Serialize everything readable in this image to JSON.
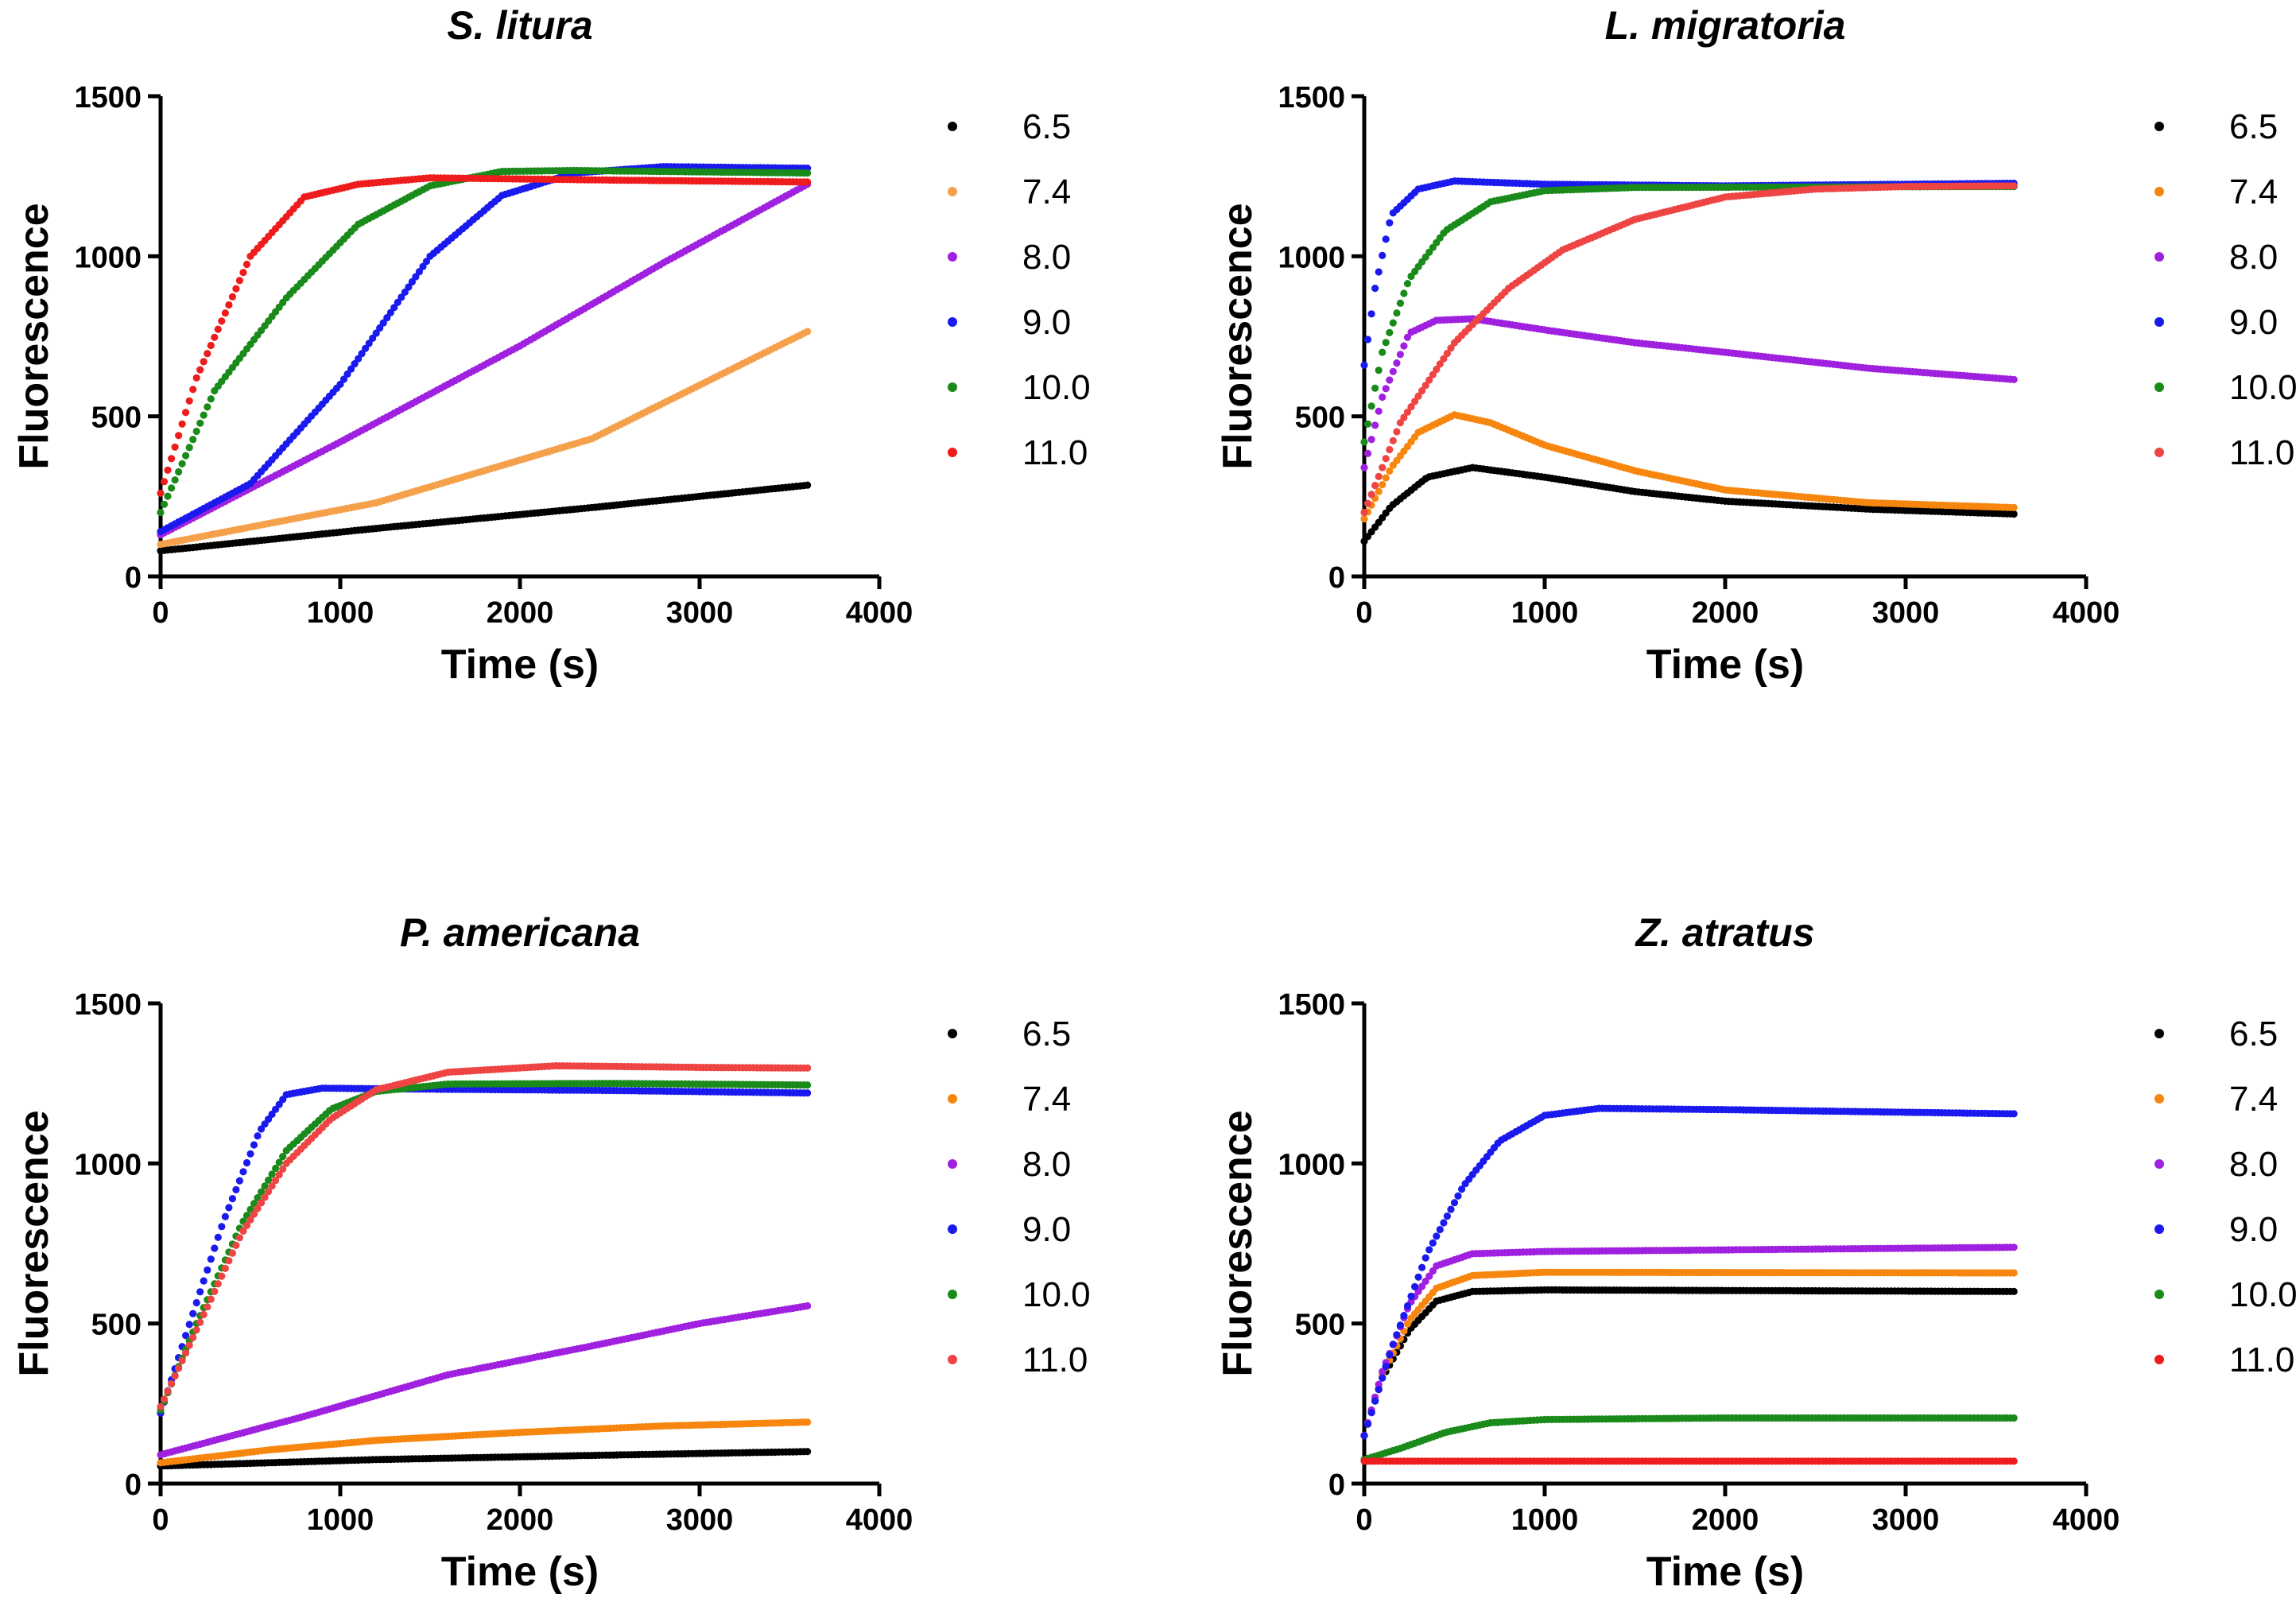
{
  "figure": {
    "layout": "2x2 grid of line/scatter charts"
  },
  "legend_entries": [
    "6.5",
    "7.4",
    "8.0",
    "9.0",
    "10.0",
    "11.0"
  ],
  "chart_data": [
    {
      "type": "scatter",
      "title": "S. litura",
      "xlabel": "Time (s)",
      "ylabel": "Fluorescence",
      "xlim": [
        0,
        4000
      ],
      "ylim": [
        0,
        1500
      ],
      "xticks": [
        "0",
        "1000",
        "2000",
        "3000",
        "4000"
      ],
      "yticks": [
        "0",
        "500",
        "1000",
        "1500"
      ],
      "x_end": 3600,
      "legend": "right",
      "series": [
        {
          "name": "6.5",
          "color": "#000000",
          "points": [
            [
              0,
              80
            ],
            [
              1200,
              150
            ],
            [
              2400,
              215
            ],
            [
              3600,
              285
            ]
          ]
        },
        {
          "name": "7.4",
          "color": "#f5a04a",
          "points": [
            [
              0,
              100
            ],
            [
              1200,
              230
            ],
            [
              2400,
              430
            ],
            [
              3600,
              765
            ]
          ]
        },
        {
          "name": "8.0",
          "color": "#a020e0",
          "points": [
            [
              0,
              130
            ],
            [
              1000,
              420
            ],
            [
              2000,
              720
            ],
            [
              2800,
              980
            ],
            [
              3600,
              1225
            ]
          ]
        },
        {
          "name": "9.0",
          "color": "#1a1aee",
          "points": [
            [
              0,
              140
            ],
            [
              500,
              290
            ],
            [
              1000,
              600
            ],
            [
              1500,
              1000
            ],
            [
              1900,
              1190
            ],
            [
              2300,
              1260
            ],
            [
              2800,
              1280
            ],
            [
              3600,
              1275
            ]
          ]
        },
        {
          "name": "10.0",
          "color": "#1a8a1a",
          "points": [
            [
              0,
              200
            ],
            [
              300,
              580
            ],
            [
              700,
              870
            ],
            [
              1100,
              1100
            ],
            [
              1500,
              1220
            ],
            [
              1900,
              1265
            ],
            [
              2300,
              1268
            ],
            [
              3600,
              1260
            ]
          ]
        },
        {
          "name": "11.0",
          "color": "#ee1c1c",
          "points": [
            [
              0,
              260
            ],
            [
              200,
              620
            ],
            [
              500,
              1000
            ],
            [
              800,
              1185
            ],
            [
              1100,
              1225
            ],
            [
              1500,
              1245
            ],
            [
              2500,
              1238
            ],
            [
              3600,
              1232
            ]
          ]
        }
      ]
    },
    {
      "type": "scatter",
      "title": "L. migratoria",
      "xlabel": "Time (s)",
      "ylabel": "Fluorescence",
      "xlim": [
        0,
        4000
      ],
      "ylim": [
        0,
        1500
      ],
      "xticks": [
        "0",
        "1000",
        "2000",
        "3000",
        "4000"
      ],
      "yticks": [
        "0",
        "500",
        "1000",
        "1500"
      ],
      "x_end": 3600,
      "legend": "right",
      "series": [
        {
          "name": "6.5",
          "color": "#000000",
          "points": [
            [
              0,
              110
            ],
            [
              150,
              220
            ],
            [
              350,
              310
            ],
            [
              600,
              340
            ],
            [
              1000,
              310
            ],
            [
              1500,
              265
            ],
            [
              2000,
              235
            ],
            [
              2800,
              210
            ],
            [
              3600,
              195
            ]
          ]
        },
        {
          "name": "7.4",
          "color": "#f7860f",
          "points": [
            [
              0,
              180
            ],
            [
              150,
              340
            ],
            [
              300,
              450
            ],
            [
              500,
              505
            ],
            [
              700,
              480
            ],
            [
              1000,
              410
            ],
            [
              1500,
              330
            ],
            [
              2000,
              270
            ],
            [
              2800,
              230
            ],
            [
              3600,
              215
            ]
          ]
        },
        {
          "name": "8.0",
          "color": "#a020e0",
          "points": [
            [
              0,
              340
            ],
            [
              100,
              560
            ],
            [
              250,
              760
            ],
            [
              400,
              800
            ],
            [
              600,
              805
            ],
            [
              1000,
              770
            ],
            [
              1500,
              730
            ],
            [
              2000,
              700
            ],
            [
              2800,
              650
            ],
            [
              3600,
              615
            ]
          ]
        },
        {
          "name": "9.0",
          "color": "#1a1aee",
          "points": [
            [
              0,
              660
            ],
            [
              60,
              900
            ],
            [
              150,
              1130
            ],
            [
              300,
              1210
            ],
            [
              500,
              1235
            ],
            [
              1000,
              1225
            ],
            [
              2000,
              1220
            ],
            [
              3600,
              1228
            ]
          ]
        },
        {
          "name": "10.0",
          "color": "#1a8a1a",
          "points": [
            [
              0,
              420
            ],
            [
              100,
              700
            ],
            [
              250,
              930
            ],
            [
              450,
              1080
            ],
            [
              700,
              1170
            ],
            [
              1000,
              1205
            ],
            [
              1500,
              1215
            ],
            [
              3600,
              1218
            ]
          ]
        },
        {
          "name": "11.0",
          "color": "#ee4444",
          "points": [
            [
              0,
              200
            ],
            [
              200,
              480
            ],
            [
              500,
              730
            ],
            [
              800,
              900
            ],
            [
              1100,
              1020
            ],
            [
              1500,
              1115
            ],
            [
              2000,
              1185
            ],
            [
              2500,
              1210
            ],
            [
              3000,
              1218
            ],
            [
              3600,
              1220
            ]
          ]
        }
      ]
    },
    {
      "type": "scatter",
      "title": "P. americana",
      "xlabel": "Time (s)",
      "ylabel": "Fluorescence",
      "xlim": [
        0,
        4000
      ],
      "ylim": [
        0,
        1500
      ],
      "xticks": [
        "0",
        "1000",
        "2000",
        "3000",
        "4000"
      ],
      "yticks": [
        "0",
        "500",
        "1000",
        "1500"
      ],
      "x_end": 3600,
      "legend": "right",
      "series": [
        {
          "name": "6.5",
          "color": "#000000",
          "points": [
            [
              0,
              55
            ],
            [
              1200,
              75
            ],
            [
              2400,
              88
            ],
            [
              3600,
              100
            ]
          ]
        },
        {
          "name": "7.4",
          "color": "#f7860f",
          "points": [
            [
              0,
              65
            ],
            [
              600,
              105
            ],
            [
              1200,
              135
            ],
            [
              2000,
              160
            ],
            [
              2800,
              180
            ],
            [
              3600,
              192
            ]
          ]
        },
        {
          "name": "8.0",
          "color": "#a020e0",
          "points": [
            [
              0,
              90
            ],
            [
              800,
              210
            ],
            [
              1600,
              340
            ],
            [
              2400,
              430
            ],
            [
              3000,
              500
            ],
            [
              3600,
              555
            ]
          ]
        },
        {
          "name": "9.0",
          "color": "#1a1aee",
          "points": [
            [
              0,
              220
            ],
            [
              150,
              480
            ],
            [
              350,
              820
            ],
            [
              550,
              1100
            ],
            [
              700,
              1215
            ],
            [
              900,
              1235
            ],
            [
              1500,
              1232
            ],
            [
              2500,
              1228
            ],
            [
              3600,
              1220
            ]
          ]
        },
        {
          "name": "10.0",
          "color": "#1a8a1a",
          "points": [
            [
              0,
              230
            ],
            [
              200,
              500
            ],
            [
              450,
              810
            ],
            [
              700,
              1040
            ],
            [
              950,
              1170
            ],
            [
              1200,
              1225
            ],
            [
              1600,
              1248
            ],
            [
              2500,
              1250
            ],
            [
              3600,
              1245
            ]
          ]
        },
        {
          "name": "11.0",
          "color": "#ee4444",
          "points": [
            [
              0,
              240
            ],
            [
              200,
              480
            ],
            [
              450,
              780
            ],
            [
              700,
              1000
            ],
            [
              950,
              1140
            ],
            [
              1200,
              1230
            ],
            [
              1600,
              1285
            ],
            [
              2200,
              1305
            ],
            [
              3000,
              1300
            ],
            [
              3600,
              1298
            ]
          ]
        }
      ]
    },
    {
      "type": "scatter",
      "title": "Z. atratus",
      "xlabel": "Time (s)",
      "ylabel": "Fluorescence",
      "xlim": [
        0,
        4000
      ],
      "ylim": [
        0,
        1500
      ],
      "xticks": [
        "0",
        "1000",
        "2000",
        "3000",
        "4000"
      ],
      "yticks": [
        "0",
        "500",
        "1000",
        "1500"
      ],
      "x_end": 3600,
      "legend": "right",
      "series": [
        {
          "name": "6.5",
          "color": "#000000",
          "points": [
            [
              0,
              150
            ],
            [
              100,
              330
            ],
            [
              250,
              480
            ],
            [
              400,
              570
            ],
            [
              600,
              600
            ],
            [
              1000,
              605
            ],
            [
              3600,
              600
            ]
          ]
        },
        {
          "name": "7.4",
          "color": "#f7860f",
          "points": [
            [
              0,
              150
            ],
            [
              100,
              340
            ],
            [
              250,
              510
            ],
            [
              400,
              610
            ],
            [
              600,
              650
            ],
            [
              1000,
              660
            ],
            [
              3600,
              658
            ]
          ]
        },
        {
          "name": "8.0",
          "color": "#a020e0",
          "points": [
            [
              0,
              150
            ],
            [
              100,
              350
            ],
            [
              250,
              560
            ],
            [
              400,
              680
            ],
            [
              600,
              718
            ],
            [
              1000,
              725
            ],
            [
              2000,
              730
            ],
            [
              3600,
              738
            ]
          ]
        },
        {
          "name": "9.0",
          "color": "#1a1aee",
          "points": [
            [
              0,
              150
            ],
            [
              150,
              420
            ],
            [
              350,
              720
            ],
            [
              550,
              930
            ],
            [
              750,
              1070
            ],
            [
              1000,
              1150
            ],
            [
              1300,
              1172
            ],
            [
              2000,
              1168
            ],
            [
              3600,
              1155
            ]
          ]
        },
        {
          "name": "10.0",
          "color": "#1a8a1a",
          "points": [
            [
              0,
              75
            ],
            [
              200,
              110
            ],
            [
              450,
              160
            ],
            [
              700,
              190
            ],
            [
              1000,
              200
            ],
            [
              2000,
              205
            ],
            [
              3600,
              205
            ]
          ]
        },
        {
          "name": "11.0",
          "color": "#ee1c1c",
          "points": [
            [
              0,
              70
            ],
            [
              3600,
              70
            ]
          ]
        }
      ]
    }
  ]
}
